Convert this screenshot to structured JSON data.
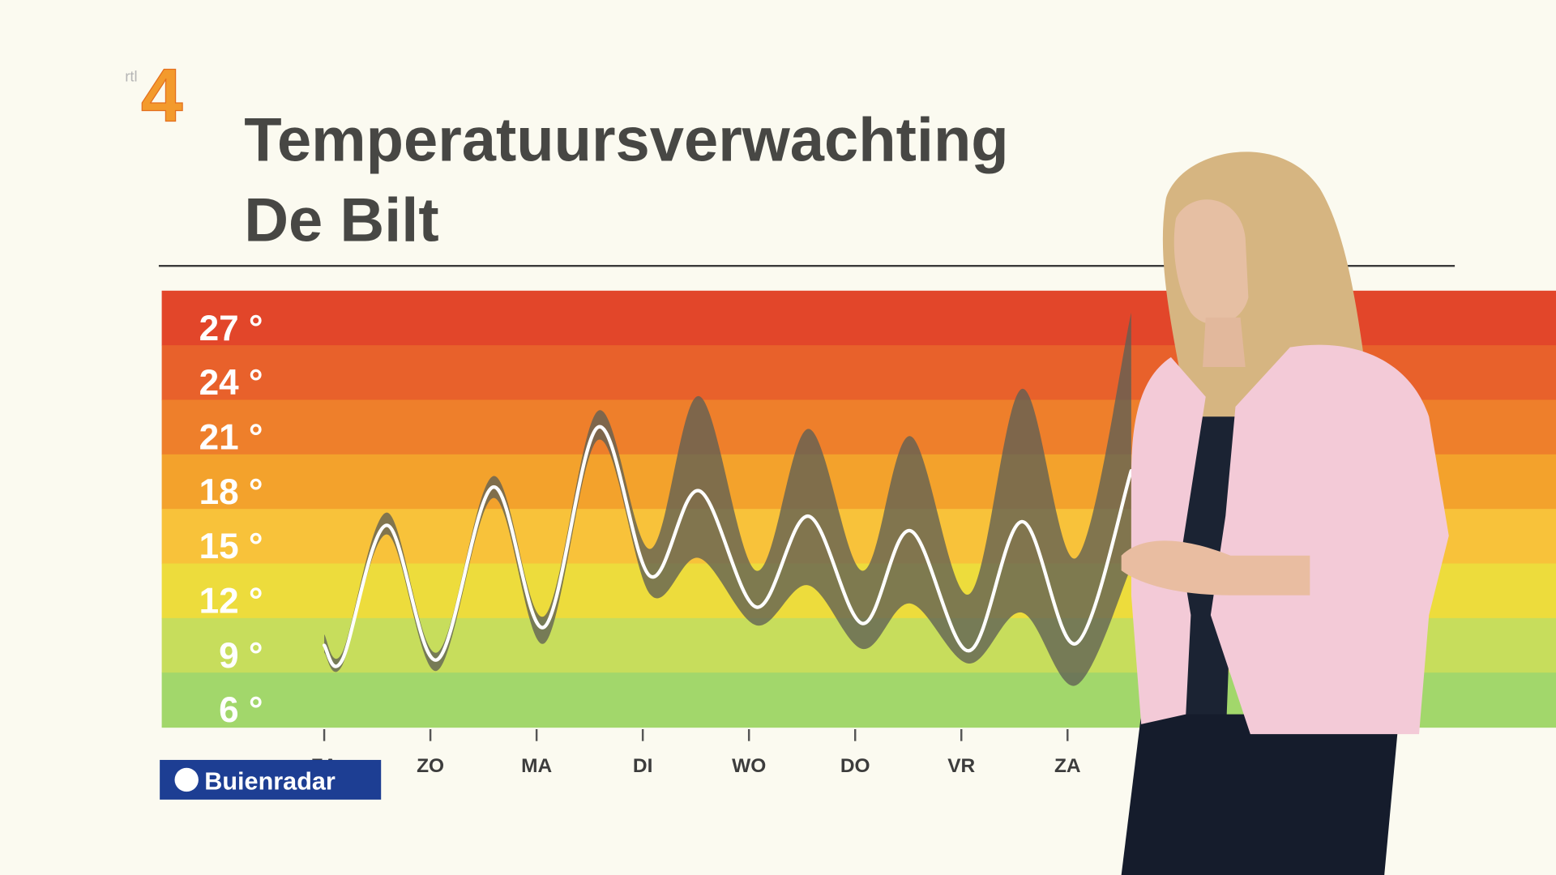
{
  "logo_text": "rtl",
  "logo_number": "4",
  "brand": "Buienradar",
  "chart_data": {
    "type": "line",
    "title": "Temperatuursverwachting",
    "subtitle": "De Bilt",
    "ylim": [
      5.2,
      29.2
    ],
    "yticks": [
      {
        "value": 27,
        "label": "27 °"
      },
      {
        "value": 24,
        "label": "24 °"
      },
      {
        "value": 21,
        "label": "21 °"
      },
      {
        "value": 18,
        "label": "18 °"
      },
      {
        "value": 15,
        "label": "15 °"
      },
      {
        "value": 12,
        "label": "12 °"
      },
      {
        "value": 9,
        "label": "9 °"
      },
      {
        "value": 6,
        "label": "6 °"
      }
    ],
    "xlim": [
      -1.53,
      11.6
    ],
    "xticks": [
      {
        "value": 0,
        "label": "ZA"
      },
      {
        "value": 1,
        "label": "ZO"
      },
      {
        "value": 2,
        "label": "MA"
      },
      {
        "value": 3,
        "label": "DI"
      },
      {
        "value": 4,
        "label": "WO"
      },
      {
        "value": 5,
        "label": "DO"
      },
      {
        "value": 6,
        "label": "VR"
      },
      {
        "value": 7,
        "label": "ZA"
      }
    ],
    "band_colors": [
      "#e2462a",
      "#e8612b",
      "#ee7f2b",
      "#f3a22c",
      "#f8c23a",
      "#eddc3c",
      "#c7dd5c",
      "#a2d76b"
    ],
    "x": [
      0,
      0.17,
      0.59,
      1.06,
      1.59,
      2.07,
      2.58,
      3.07,
      3.53,
      4.07,
      4.56,
      5.07,
      5.52,
      6.07,
      6.57,
      7.08,
      7.6
    ],
    "values": [
      9.7,
      8.9,
      16.3,
      8.9,
      18.4,
      10.7,
      21.7,
      13.5,
      18.2,
      11.8,
      16.8,
      10.9,
      16.0,
      9.4,
      16.5,
      9.8,
      19.3
    ],
    "low": [
      9.3,
      8.6,
      15.8,
      8.3,
      17.8,
      9.8,
      21.0,
      12.5,
      14.5,
      10.8,
      13.0,
      9.5,
      12.0,
      8.7,
      11.5,
      7.5,
      14.0
    ],
    "high": [
      10.3,
      9.3,
      17.0,
      9.3,
      19.0,
      11.3,
      22.6,
      15.0,
      23.4,
      13.8,
      21.6,
      13.8,
      21.2,
      12.5,
      23.8,
      14.5,
      28.0
    ],
    "line_color": "#ffffff",
    "band_color": "#5f5f55"
  }
}
